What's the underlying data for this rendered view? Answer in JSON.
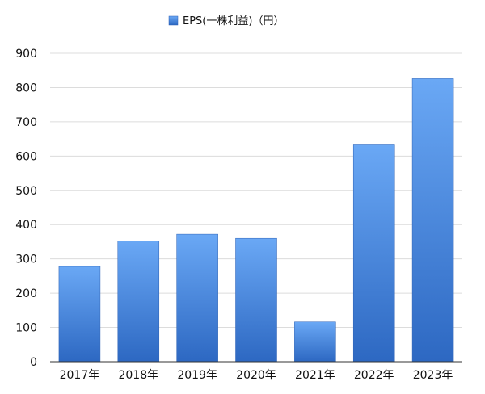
{
  "chart_data": {
    "type": "bar",
    "categories": [
      "2017年",
      "2018年",
      "2019年",
      "2020年",
      "2021年",
      "2022年",
      "2023年"
    ],
    "series": [
      {
        "name": "EPS(一株利益)（円）",
        "values": [
          278,
          352,
          372,
          360,
          116,
          635,
          826
        ]
      }
    ],
    "ylim": [
      0,
      900
    ],
    "yticks": [
      0,
      100,
      200,
      300,
      400,
      500,
      600,
      700,
      800,
      900
    ],
    "grid": true,
    "legend_position": "top-center",
    "colors": {
      "bar_top": "#6aa8f5",
      "bar_bottom": "#2d68c2",
      "bar_edge": "#2a5fb3",
      "grid": "#dcdcdc",
      "axis": "#333333"
    }
  }
}
